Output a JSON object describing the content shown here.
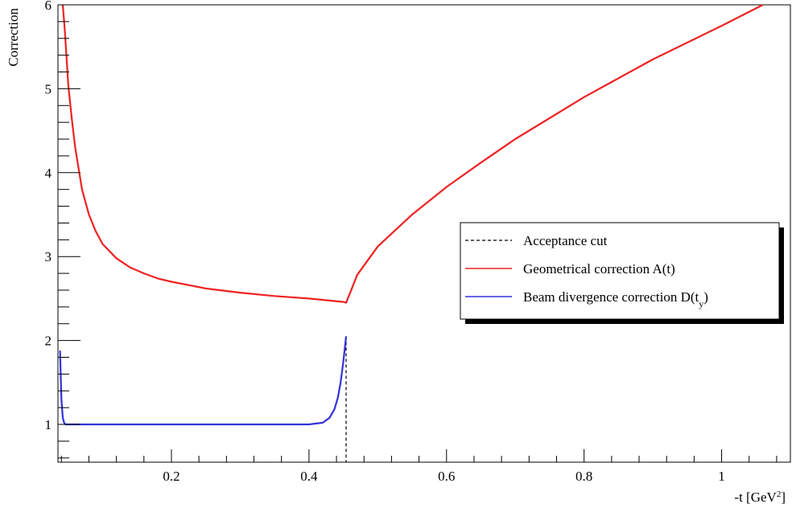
{
  "chart_data": {
    "type": "line",
    "title": "",
    "xlabel": "-t [GeV",
    "xlabel_sup": "2",
    "xlabel_close": "]",
    "ylabel": "Correction",
    "xlim": [
      0.035,
      1.1
    ],
    "ylim": [
      0.55,
      6.0
    ],
    "grid": false,
    "x_ticks": [
      0.2,
      0.4,
      0.6,
      0.8,
      1.0
    ],
    "x_tick_labels": [
      "0.2",
      "0.4",
      "0.6",
      "0.8",
      "1"
    ],
    "y_ticks": [
      1,
      2,
      3,
      4,
      5,
      6
    ],
    "y_tick_labels": [
      "1",
      "2",
      "3",
      "4",
      "5",
      "6"
    ],
    "legend_position": "right",
    "legend": [
      {
        "label": "Acceptance cut",
        "color": "#000000",
        "style": "dashed"
      },
      {
        "label": "Geometrical correction A(t)",
        "color": "#ee2222",
        "style": "solid"
      },
      {
        "label": "Beam divergence correction D(t",
        "sub": "y",
        "close": ")",
        "color": "#3333dd",
        "style": "solid"
      }
    ],
    "series": [
      {
        "color": "#ee2222",
        "x": [
          0.042,
          0.045,
          0.05,
          0.055,
          0.06,
          0.07,
          0.08,
          0.09,
          0.1,
          0.12,
          0.14,
          0.16,
          0.18,
          0.2,
          0.25,
          0.3,
          0.35,
          0.4,
          0.45,
          0.454,
          0.46,
          0.47,
          0.5,
          0.55,
          0.6,
          0.65,
          0.7,
          0.8,
          0.9,
          1.0,
          1.06
        ],
        "y": [
          6.0,
          5.7,
          5.05,
          4.65,
          4.3,
          3.8,
          3.5,
          3.3,
          3.15,
          2.98,
          2.87,
          2.8,
          2.74,
          2.7,
          2.62,
          2.57,
          2.53,
          2.5,
          2.46,
          2.45,
          2.57,
          2.78,
          3.12,
          3.5,
          3.83,
          4.12,
          4.4,
          4.9,
          5.35,
          5.75,
          6.0
        ]
      },
      {
        "color": "#3333dd",
        "x": [
          0.038,
          0.039,
          0.04,
          0.042,
          0.044,
          0.046,
          0.05,
          0.06,
          0.1,
          0.2,
          0.3,
          0.4,
          0.42,
          0.43,
          0.437,
          0.442,
          0.446,
          0.45,
          0.452,
          0.454
        ],
        "y": [
          1.88,
          1.6,
          1.3,
          1.08,
          1.02,
          1.0,
          1.0,
          1.0,
          1.0,
          1.0,
          1.0,
          1.0,
          1.02,
          1.08,
          1.18,
          1.32,
          1.5,
          1.75,
          1.9,
          2.05
        ]
      }
    ],
    "acceptance_cut_x": 0.454
  }
}
